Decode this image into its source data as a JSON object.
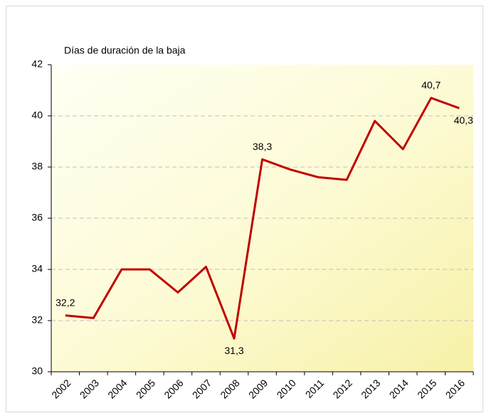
{
  "chart_data": {
    "type": "line",
    "ylabel": "Días de duración de la baja",
    "categories": [
      "2002",
      "2003",
      "2004",
      "2005",
      "2006",
      "2007",
      "2008",
      "2009",
      "2010",
      "2011",
      "2012",
      "2013",
      "2014",
      "2015",
      "2016"
    ],
    "series": [
      {
        "color": "#c00000",
        "values": [
          32.2,
          32.1,
          34.0,
          34.0,
          33.1,
          34.1,
          31.3,
          38.3,
          37.9,
          37.6,
          37.5,
          39.8,
          38.7,
          40.7,
          40.3
        ],
        "value_labels": [
          "32,2",
          null,
          null,
          null,
          null,
          null,
          "31,3",
          "38,3",
          null,
          null,
          null,
          null,
          null,
          "40,7",
          "40,3"
        ]
      }
    ],
    "ylim": [
      30,
      42
    ],
    "yticks": [
      30,
      32,
      34,
      36,
      38,
      40,
      42
    ],
    "grid": true
  }
}
